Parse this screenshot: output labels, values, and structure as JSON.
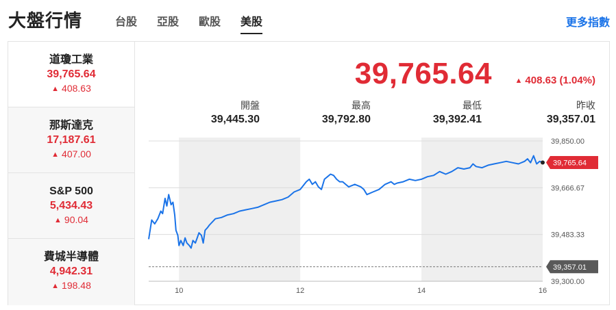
{
  "header": {
    "title": "大盤行情",
    "more_label": "更多指數"
  },
  "tabs": [
    {
      "label": "台股",
      "active": false
    },
    {
      "label": "亞股",
      "active": false
    },
    {
      "label": "歐股",
      "active": false
    },
    {
      "label": "美股",
      "active": true
    }
  ],
  "sidebar": {
    "items": [
      {
        "name": "道瓊工業",
        "value": "39,765.64",
        "change": "408.63",
        "active": true
      },
      {
        "name": "那斯達克",
        "value": "17,187.61",
        "change": "407.00",
        "active": false
      },
      {
        "name": "S&P 500",
        "value": "5,434.43",
        "change": "90.04",
        "active": false
      },
      {
        "name": "費城半導體",
        "value": "4,942.31",
        "change": "198.48",
        "active": false
      }
    ]
  },
  "quote": {
    "price": "39,765.64",
    "change": "408.63 (1.04%)",
    "stats": [
      {
        "label": "開盤",
        "value": "39,445.30"
      },
      {
        "label": "最高",
        "value": "39,792.80"
      },
      {
        "label": "最低",
        "value": "39,392.41"
      },
      {
        "label": "昨收",
        "value": "39,357.01"
      }
    ]
  },
  "colors": {
    "up": "#e02b35",
    "line": "#1a73e8",
    "shade": "#efefef",
    "prev_close_tag": "#595959"
  },
  "chart_data": {
    "type": "line",
    "x_ticks": [
      "10",
      "12",
      "14",
      "16"
    ],
    "y_ticks": [
      "39,850.00",
      "39,666.67",
      "39,483.33",
      "39,300.00"
    ],
    "ylim": [
      39300,
      39850
    ],
    "xlim": [
      9.5,
      16
    ],
    "shaded_bands": [
      [
        10,
        12
      ],
      [
        14,
        16
      ]
    ],
    "prev_close": 39357.01,
    "prev_close_label": "39,357.01",
    "last_value": 39765.64,
    "last_label": "39,765.64",
    "series": [
      {
        "x": [
          9.5,
          9.55,
          9.6,
          9.65,
          9.7,
          9.73,
          9.77,
          9.8,
          9.83,
          9.87,
          9.9,
          9.93,
          9.95,
          9.98,
          10.0,
          10.03,
          10.07,
          10.1,
          10.13,
          10.17,
          10.2,
          10.23,
          10.27,
          10.3,
          10.33,
          10.37,
          10.4,
          10.43,
          10.47,
          10.5,
          10.6,
          10.7,
          10.8,
          10.9,
          11.0,
          11.1,
          11.2,
          11.3,
          11.4,
          11.5,
          11.6,
          11.7,
          11.8,
          11.9,
          12.0,
          12.1,
          12.15,
          12.2,
          12.25,
          12.3,
          12.35,
          12.4,
          12.45,
          12.5,
          12.55,
          12.6,
          12.65,
          12.7,
          12.75,
          12.8,
          12.9,
          13.0,
          13.05,
          13.1,
          13.2,
          13.3,
          13.4,
          13.5,
          13.55,
          13.6,
          13.7,
          13.8,
          13.9,
          14.0,
          14.1,
          14.2,
          14.3,
          14.4,
          14.5,
          14.6,
          14.7,
          14.8,
          14.85,
          14.9,
          15.0,
          15.1,
          15.2,
          15.3,
          15.4,
          15.5,
          15.6,
          15.7,
          15.75,
          15.8,
          15.85,
          15.9,
          15.95,
          16.0
        ],
        "values": [
          39465,
          39540,
          39525,
          39545,
          39575,
          39565,
          39625,
          39595,
          39640,
          39600,
          39610,
          39560,
          39500,
          39480,
          39440,
          39460,
          39440,
          39470,
          39450,
          39440,
          39430,
          39460,
          39450,
          39470,
          39490,
          39480,
          39450,
          39500,
          39510,
          39520,
          39545,
          39550,
          39560,
          39565,
          39575,
          39580,
          39585,
          39590,
          39600,
          39610,
          39615,
          39620,
          39630,
          39650,
          39660,
          39690,
          39700,
          39680,
          39690,
          39670,
          39660,
          39700,
          39710,
          39720,
          39715,
          39700,
          39690,
          39690,
          39680,
          39670,
          39680,
          39670,
          39660,
          39640,
          39650,
          39660,
          39680,
          39690,
          39680,
          39685,
          39690,
          39700,
          39695,
          39700,
          39710,
          39715,
          39730,
          39720,
          39730,
          39745,
          39740,
          39745,
          39760,
          39750,
          39745,
          39755,
          39760,
          39765,
          39770,
          39765,
          39760,
          39770,
          39780,
          39765,
          39792,
          39760,
          39770,
          39765.64
        ]
      }
    ]
  }
}
